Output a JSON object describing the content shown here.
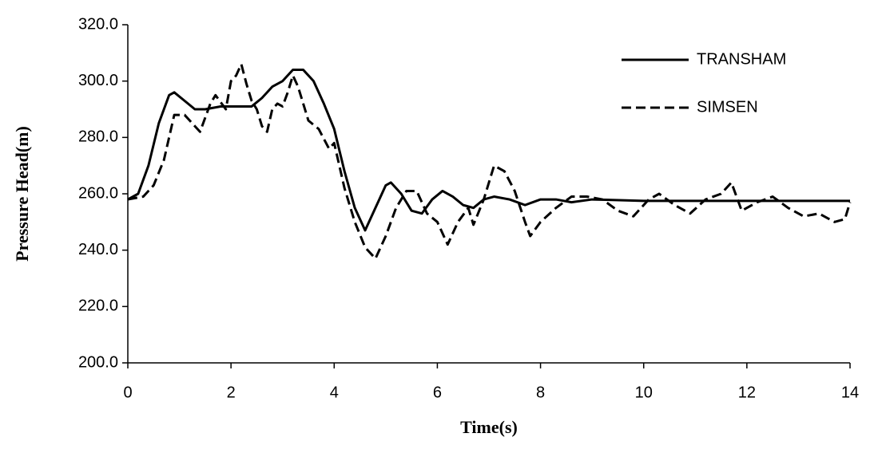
{
  "chart_data": {
    "type": "line",
    "xlabel": "Time(s)",
    "ylabel": "Pressure Head(m)",
    "xlim": [
      0,
      14
    ],
    "xticks": [
      0,
      2,
      4,
      6,
      8,
      10,
      12,
      14
    ],
    "ylim": [
      200,
      320
    ],
    "yticks": [
      {
        "value": 200,
        "label": "200.0"
      },
      {
        "value": 220,
        "label": "220.0"
      },
      {
        "value": 240,
        "label": "240.0"
      },
      {
        "value": 260,
        "label": "260.0"
      },
      {
        "value": 280,
        "label": "280.0"
      },
      {
        "value": 300,
        "label": "300.0"
      },
      {
        "value": 320,
        "label": "320.0"
      }
    ],
    "grid": false,
    "legend": "upper right",
    "series": [
      {
        "name": "TRANSHAM",
        "color": "#000000",
        "dash": "solid",
        "x": [
          0,
          0.2,
          0.4,
          0.6,
          0.8,
          0.9,
          1.1,
          1.3,
          1.5,
          1.8,
          2.0,
          2.4,
          2.6,
          2.8,
          3.0,
          3.2,
          3.4,
          3.6,
          3.8,
          4.0,
          4.2,
          4.4,
          4.6,
          4.8,
          5.0,
          5.1,
          5.3,
          5.5,
          5.7,
          5.9,
          6.1,
          6.3,
          6.5,
          6.7,
          6.9,
          7.1,
          7.4,
          7.7,
          8.0,
          8.3,
          8.6,
          9.0,
          10,
          11,
          12,
          13,
          14
        ],
        "values": [
          258,
          260,
          270,
          285,
          295,
          296,
          293,
          290,
          290,
          291,
          291,
          291,
          294,
          298,
          300,
          304,
          304,
          300,
          292,
          283,
          268,
          255,
          247,
          255,
          263,
          264,
          260,
          254,
          253,
          258,
          261,
          259,
          256,
          255,
          258,
          259,
          258,
          256,
          258,
          258,
          257,
          258,
          257.5,
          257.5,
          257.5,
          257.5,
          257.5
        ]
      },
      {
        "name": "SIMSEN",
        "color": "#000000",
        "dash": "dashed",
        "x": [
          0,
          0.3,
          0.5,
          0.7,
          0.9,
          1.1,
          1.3,
          1.4,
          1.6,
          1.7,
          1.9,
          2.0,
          2.1,
          2.2,
          2.3,
          2.4,
          2.5,
          2.6,
          2.7,
          2.8,
          2.9,
          3.0,
          3.1,
          3.2,
          3.3,
          3.5,
          3.7,
          3.9,
          4.0,
          4.2,
          4.4,
          4.6,
          4.8,
          5.0,
          5.2,
          5.4,
          5.6,
          5.8,
          6.0,
          6.2,
          6.4,
          6.6,
          6.7,
          6.9,
          7.1,
          7.3,
          7.5,
          7.7,
          7.8,
          8.0,
          8.3,
          8.6,
          8.9,
          9.2,
          9.5,
          9.8,
          10.1,
          10.3,
          10.6,
          10.9,
          11.2,
          11.5,
          11.7,
          11.9,
          12.2,
          12.5,
          12.8,
          13.1,
          13.4,
          13.7,
          13.9,
          14
        ],
        "values": [
          258,
          259,
          263,
          272,
          288,
          288,
          284,
          282,
          292,
          295,
          290,
          300,
          302,
          306,
          299,
          293,
          290,
          284,
          282,
          290,
          292,
          291,
          296,
          302,
          298,
          286,
          283,
          276,
          278,
          262,
          250,
          241,
          237,
          245,
          255,
          261,
          261,
          253,
          250,
          242,
          250,
          255,
          249,
          258,
          270,
          268,
          261,
          250,
          245,
          250,
          255,
          259,
          259,
          258,
          254,
          252,
          258,
          260,
          256,
          253,
          258,
          260,
          264,
          254,
          257,
          259,
          255,
          252,
          253,
          250,
          251,
          257
        ]
      }
    ]
  }
}
